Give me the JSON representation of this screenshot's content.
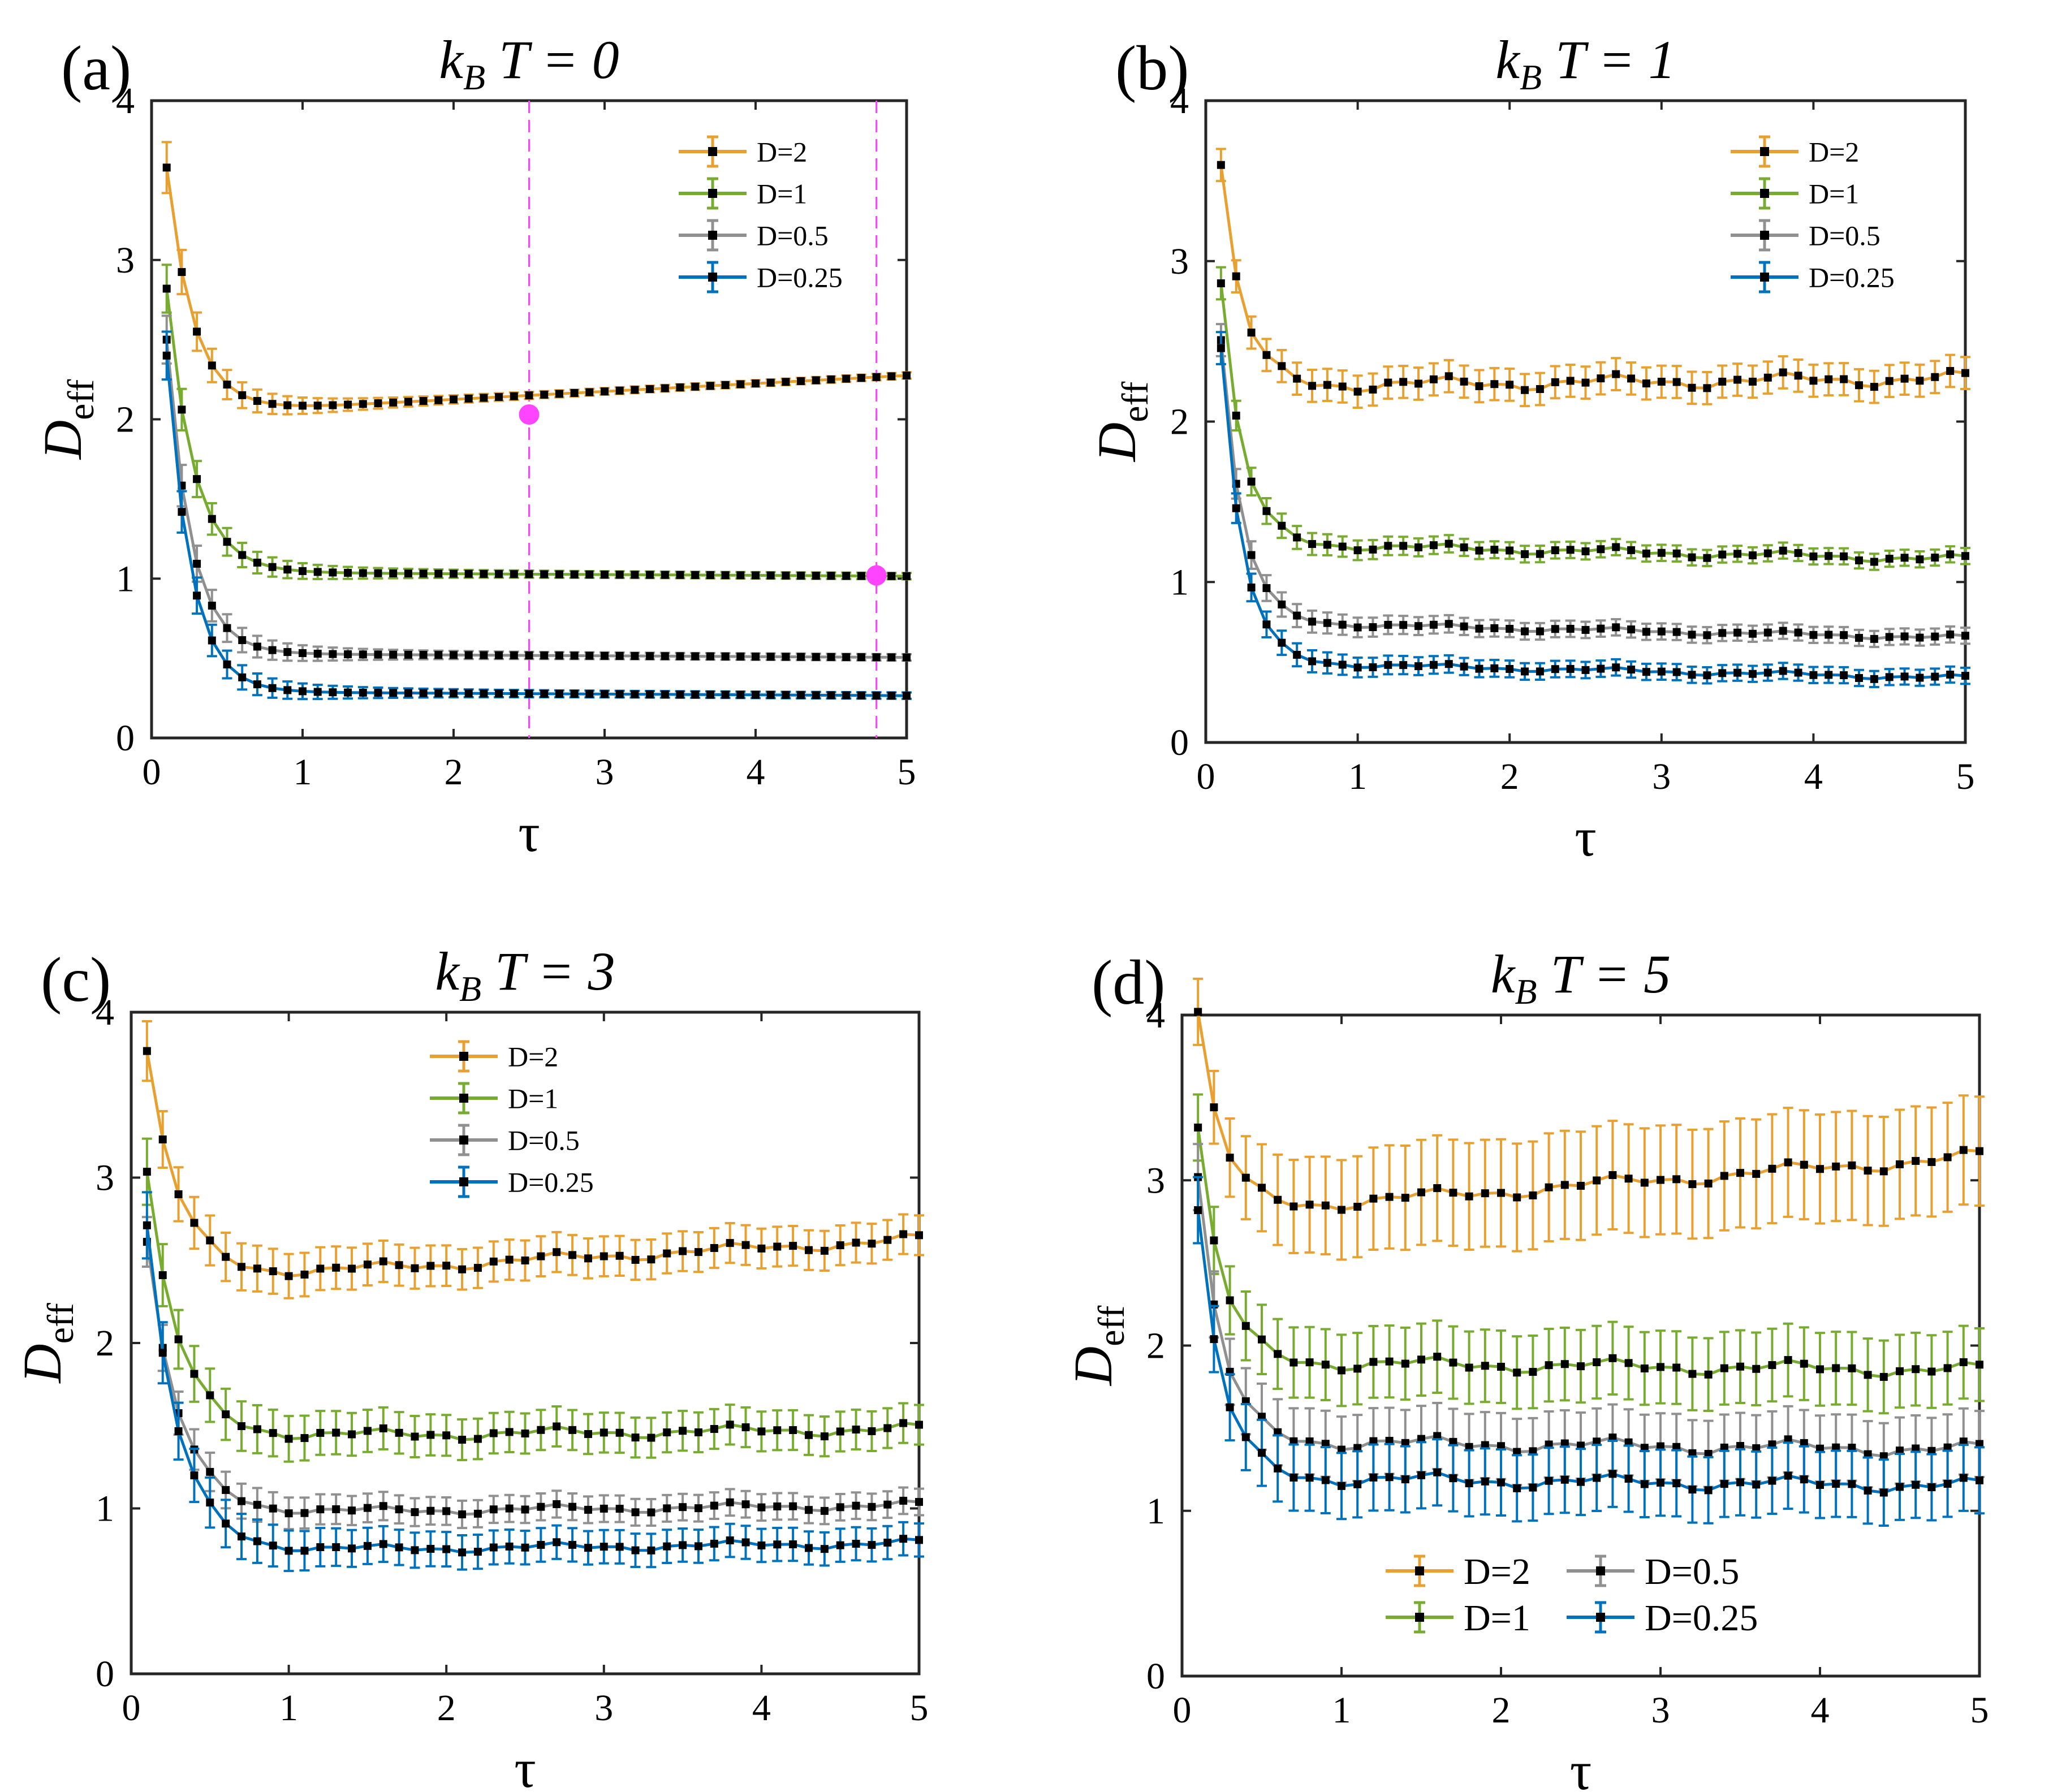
{
  "colors": {
    "D=2": "#E8A030",
    "D=1": "#77AC30",
    "D=0.5": "#909090",
    "D=0.25": "#0072BD",
    "guide": "#FF44FF",
    "marker": "#000000"
  },
  "chart_data": [
    {
      "panel": "(a)",
      "type": "line",
      "title": "k_B T = 0",
      "title_parts": {
        "k": "k",
        "sub": "B",
        "rest": "T = 0"
      },
      "xlabel": "τ",
      "ylabel": "D_eff",
      "ylabel_parts": {
        "main": "D",
        "sub": "eff"
      },
      "xlim": [
        0,
        5
      ],
      "ylim": [
        0,
        4
      ],
      "xticks": [
        "0",
        "1",
        "2",
        "3",
        "4",
        "5"
      ],
      "yticks": [
        "0",
        "1",
        "2",
        "3",
        "4"
      ],
      "legend_position": "top-right",
      "marker_style": "square",
      "vlines": [
        2.5,
        4.8
      ],
      "highlight_points": [
        {
          "x": 2.5,
          "y": 2.03
        },
        {
          "x": 4.8,
          "y": 1.02
        }
      ],
      "series": [
        {
          "name": "D=2",
          "start": 3.58,
          "plateau": 2.03,
          "decay": 0.18,
          "slope": 0.05,
          "err": 0.16,
          "err_far": 0.02,
          "noise": 0.0
        },
        {
          "name": "D=1",
          "start": 2.82,
          "plateau": 1.04,
          "decay": 0.18,
          "slope": -0.005,
          "err": 0.15,
          "err_far": 0.02,
          "noise": 0.0
        },
        {
          "name": "D=0.5",
          "start": 2.5,
          "plateau": 0.53,
          "decay": 0.16,
          "slope": -0.005,
          "err": 0.15,
          "err_far": 0.02,
          "noise": 0.0
        },
        {
          "name": "D=0.25",
          "start": 2.4,
          "plateau": 0.29,
          "decay": 0.16,
          "slope": -0.005,
          "err": 0.15,
          "err_far": 0.02,
          "noise": 0.0
        }
      ]
    },
    {
      "panel": "(b)",
      "type": "line",
      "title": "k_B T = 1",
      "title_parts": {
        "k": "k",
        "sub": "B",
        "rest": "T = 1"
      },
      "xlabel": "τ",
      "ylabel": "D_eff",
      "ylabel_parts": {
        "main": "D",
        "sub": "eff"
      },
      "xlim": [
        0,
        5
      ],
      "ylim": [
        0,
        4
      ],
      "xticks": [
        "0",
        "1",
        "2",
        "3",
        "4",
        "5"
      ],
      "yticks": [
        "0",
        "1",
        "2",
        "3",
        "4"
      ],
      "legend_position": "top-right",
      "marker_style": "square",
      "vlines": [],
      "highlight_points": [],
      "series": [
        {
          "name": "D=2",
          "start": 3.58,
          "plateau": 2.22,
          "decay": 0.14,
          "slope": 0.01,
          "err": 0.1,
          "err_far": 0.1,
          "noise": 0.05
        },
        {
          "name": "D=1",
          "start": 2.85,
          "plateau": 1.24,
          "decay": 0.14,
          "slope": -0.02,
          "err": 0.1,
          "err_far": 0.05,
          "noise": 0.03
        },
        {
          "name": "D=0.5",
          "start": 2.5,
          "plateau": 0.75,
          "decay": 0.14,
          "slope": -0.02,
          "err": 0.1,
          "err_far": 0.05,
          "noise": 0.02
        },
        {
          "name": "D=0.25",
          "start": 2.45,
          "plateau": 0.5,
          "decay": 0.14,
          "slope": -0.02,
          "err": 0.1,
          "err_far": 0.05,
          "noise": 0.02
        }
      ]
    },
    {
      "panel": "(c)",
      "type": "line",
      "title": "k_B T = 3",
      "title_parts": {
        "k": "k",
        "sub": "B",
        "rest": "T = 3"
      },
      "xlabel": "τ",
      "ylabel": "D_eff",
      "ylabel_parts": {
        "main": "D",
        "sub": "eff"
      },
      "xlim": [
        0,
        5
      ],
      "ylim": [
        0,
        4
      ],
      "xticks": [
        "0",
        "1",
        "2",
        "3",
        "4",
        "5"
      ],
      "yticks": [
        "0",
        "1",
        "2",
        "3",
        "4"
      ],
      "legend_position": "top-center",
      "marker_style": "square",
      "vlines": [],
      "highlight_points": [],
      "series": [
        {
          "name": "D=2",
          "start": 3.75,
          "plateau": 2.38,
          "decay": 0.2,
          "slope": 0.05,
          "err": 0.18,
          "err_far": 0.12,
          "noise": 0.04
        },
        {
          "name": "D=1",
          "start": 3.02,
          "plateau": 1.43,
          "decay": 0.2,
          "slope": 0.01,
          "err": 0.2,
          "err_far": 0.12,
          "noise": 0.04
        },
        {
          "name": "D=0.5",
          "start": 2.6,
          "plateau": 0.97,
          "decay": 0.2,
          "slope": 0.01,
          "err": 0.15,
          "err_far": 0.08,
          "noise": 0.03
        },
        {
          "name": "D=0.25",
          "start": 2.7,
          "plateau": 0.74,
          "decay": 0.2,
          "slope": 0.01,
          "err": 0.2,
          "err_far": 0.1,
          "noise": 0.03
        }
      ]
    },
    {
      "panel": "(d)",
      "type": "line",
      "title": "k_B T = 5",
      "title_parts": {
        "k": "k",
        "sub": "B",
        "rest": "T = 5"
      },
      "xlabel": "τ",
      "ylabel": "D_eff",
      "ylabel_parts": {
        "main": "D",
        "sub": "eff"
      },
      "xlim": [
        0,
        5
      ],
      "ylim": [
        0,
        4
      ],
      "xticks": [
        "0",
        "1",
        "2",
        "3",
        "4",
        "5"
      ],
      "yticks": [
        "0",
        "1",
        "2",
        "3",
        "4"
      ],
      "legend_position": "bottom-center",
      "marker_style": "square",
      "vlines": [],
      "highlight_points": [],
      "series": [
        {
          "name": "D=2",
          "start": 4.0,
          "plateau": 2.8,
          "decay": 0.15,
          "slope": 0.07,
          "err": 0.2,
          "err_far": 0.33,
          "noise": 0.05
        },
        {
          "name": "D=1",
          "start": 3.3,
          "plateau": 1.9,
          "decay": 0.15,
          "slope": -0.01,
          "err": 0.2,
          "err_far": 0.22,
          "noise": 0.05
        },
        {
          "name": "D=0.5",
          "start": 3.0,
          "plateau": 1.42,
          "decay": 0.15,
          "slope": -0.01,
          "err": 0.2,
          "err_far": 0.2,
          "noise": 0.05
        },
        {
          "name": "D=0.25",
          "start": 2.8,
          "plateau": 1.2,
          "decay": 0.15,
          "slope": -0.01,
          "err": 0.2,
          "err_far": 0.2,
          "noise": 0.05
        }
      ]
    }
  ]
}
